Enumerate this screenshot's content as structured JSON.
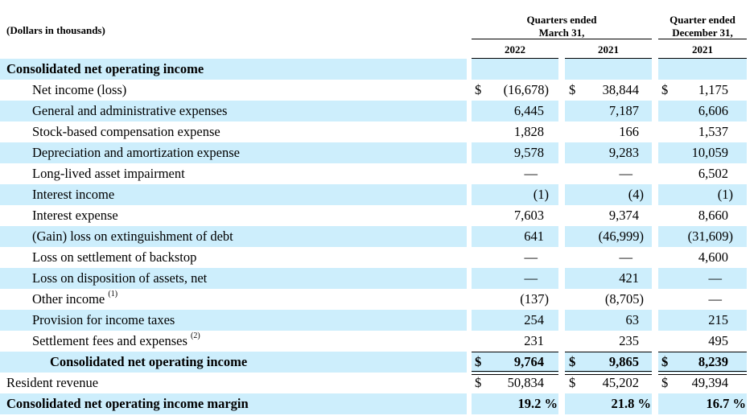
{
  "header": {
    "units": "(Dollars in thousands)",
    "group1_line1": "Quarters ended",
    "group1_line2": "March 31,",
    "group2_line1": "Quarter ended",
    "group2_line2": "December 31,",
    "col1": "2022",
    "col2": "2021",
    "col3": "2021"
  },
  "rows": [
    {
      "label": "Consolidated net operating income",
      "bold": true,
      "indent": 0,
      "note": "",
      "v": [
        "",
        "",
        ""
      ],
      "dollar": false
    },
    {
      "label": "Net income (loss)",
      "indent": 1,
      "note": "",
      "v": [
        "(16,678)",
        "38,844",
        "1,175"
      ],
      "dollar": true
    },
    {
      "label": "General and administrative expenses",
      "indent": 1,
      "note": "",
      "v": [
        "6,445",
        "7,187",
        "6,606"
      ],
      "dollar": false
    },
    {
      "label": "Stock-based compensation expense",
      "indent": 1,
      "note": "",
      "v": [
        "1,828",
        "166",
        "1,537"
      ],
      "dollar": false
    },
    {
      "label": "Depreciation and amortization expense",
      "indent": 1,
      "note": "",
      "v": [
        "9,578",
        "9,283",
        "10,059"
      ],
      "dollar": false
    },
    {
      "label": "Long-lived asset impairment",
      "indent": 1,
      "note": "",
      "v": [
        "—",
        "—",
        "6,502"
      ],
      "dollar": false
    },
    {
      "label": "Interest income",
      "indent": 1,
      "note": "",
      "v": [
        "(1)",
        "(4)",
        "(1)"
      ],
      "dollar": false
    },
    {
      "label": "Interest expense",
      "indent": 1,
      "note": "",
      "v": [
        "7,603",
        "9,374",
        "8,660"
      ],
      "dollar": false
    },
    {
      "label": "(Gain) loss on extinguishment of debt",
      "indent": 1,
      "note": "",
      "v": [
        "641",
        "(46,999)",
        "(31,609)"
      ],
      "dollar": false
    },
    {
      "label": "Loss on settlement of backstop",
      "indent": 1,
      "note": "",
      "v": [
        "—",
        "—",
        "4,600"
      ],
      "dollar": false
    },
    {
      "label": "Loss on disposition of assets, net",
      "indent": 1,
      "note": "",
      "v": [
        "—",
        "421",
        "—"
      ],
      "dollar": false
    },
    {
      "label": "Other income",
      "indent": 1,
      "note": "(1)",
      "v": [
        "(137)",
        "(8,705)",
        "—"
      ],
      "dollar": false
    },
    {
      "label": "Provision for income taxes",
      "indent": 1,
      "note": "",
      "v": [
        "254",
        "63",
        "215"
      ],
      "dollar": false
    },
    {
      "label": "Settlement fees and expenses",
      "indent": 1,
      "note": "(2)",
      "v": [
        "231",
        "235",
        "495"
      ],
      "dollar": false
    },
    {
      "label": "Consolidated net operating income",
      "bold": true,
      "indent": 2,
      "note": "",
      "v": [
        "9,764",
        "9,865",
        "8,239"
      ],
      "dollar": true
    },
    {
      "label": "Resident revenue",
      "indent": 0,
      "note": "",
      "v": [
        "50,834",
        "45,202",
        "49,394"
      ],
      "dollar": true
    },
    {
      "label": "Consolidated net operating income margin",
      "bold": true,
      "indent": 0,
      "note": "",
      "v": [
        "19.2 %",
        "21.8 %",
        "16.7 %"
      ],
      "dollar": false
    }
  ],
  "dollar_sign": "$",
  "colors": {
    "band": "#cdeefc"
  }
}
